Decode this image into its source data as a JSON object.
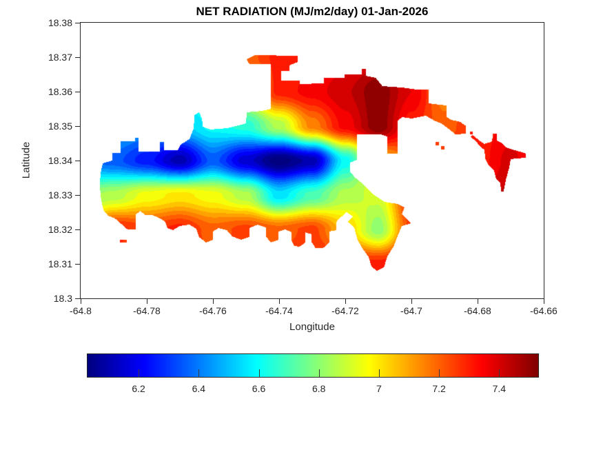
{
  "figure": {
    "title": "NET RADIATION (MJ/m2/day) 01-Jan-2026"
  },
  "chart_data": {
    "type": "heatmap",
    "title": "NET RADIATION (MJ/m2/day) 01-Jan-2026",
    "xlabel": "Longitude",
    "ylabel": "Latitude",
    "xlim": [
      -64.8,
      -64.66
    ],
    "ylim": [
      18.3,
      18.38
    ],
    "grid_on": false,
    "xticks": [
      -64.8,
      -64.78,
      -64.76,
      -64.74,
      -64.72,
      -64.7,
      -64.68,
      -64.66
    ],
    "xtick_labels": [
      "-64.8",
      "-64.78",
      "-64.76",
      "-64.74",
      "-64.72",
      "-64.7",
      "-64.68",
      "-64.66"
    ],
    "yticks": [
      18.38,
      18.37,
      18.36,
      18.35,
      18.34,
      18.33,
      18.32,
      18.31,
      18.3
    ],
    "ytick_labels": [
      "18.38",
      "18.37",
      "18.36",
      "18.35",
      "18.34",
      "18.33",
      "18.32",
      "18.31",
      "18.3"
    ],
    "colorbar": {
      "orientation": "horizontal",
      "colormap": "jet",
      "vmin": 6.03,
      "vmax": 7.53,
      "ticks": [
        6.2,
        6.4,
        6.6,
        6.8,
        7.0,
        7.2,
        7.4
      ],
      "tick_labels": [
        "6.2",
        "6.4",
        "6.6",
        "6.8",
        "7",
        "7.2",
        "7.4"
      ]
    },
    "level_step": 0.05,
    "grid": {
      "lon": [
        -64.8,
        -64.79,
        -64.78,
        -64.77,
        -64.76,
        -64.75,
        -64.74,
        -64.73,
        -64.72,
        -64.71,
        -64.7,
        -64.69,
        -64.68,
        -64.67,
        -64.66
      ],
      "lat": [
        18.38,
        18.37,
        18.36,
        18.35,
        18.34,
        18.33,
        18.32,
        18.31,
        18.3
      ],
      "values": [
        [
          6.5,
          6.5,
          6.55,
          6.6,
          6.7,
          6.9,
          7.1,
          7.25,
          7.35,
          7.4,
          7.35,
          7.25,
          7.2,
          7.2,
          7.2
        ],
        [
          6.5,
          6.5,
          6.55,
          6.6,
          6.75,
          7.2,
          7.3,
          7.3,
          7.35,
          7.4,
          7.35,
          7.25,
          7.2,
          7.2,
          7.2
        ],
        [
          6.5,
          6.5,
          6.55,
          6.6,
          6.7,
          7.0,
          7.3,
          7.35,
          7.42,
          7.52,
          7.38,
          7.15,
          7.1,
          7.15,
          7.1
        ],
        [
          6.45,
          6.5,
          6.45,
          6.5,
          6.6,
          6.65,
          6.85,
          7.15,
          7.35,
          7.52,
          7.3,
          7.2,
          7.3,
          7.35,
          7.2
        ],
        [
          6.4,
          6.35,
          6.25,
          6.1,
          6.35,
          6.15,
          6.0,
          6.1,
          6.6,
          7.05,
          7.2,
          7.3,
          7.3,
          7.4,
          7.25
        ],
        [
          6.8,
          6.85,
          6.95,
          7.0,
          6.95,
          6.85,
          6.55,
          6.7,
          6.85,
          6.9,
          7.3,
          7.3,
          7.35,
          7.45,
          7.3
        ],
        [
          7.0,
          7.3,
          7.25,
          7.3,
          7.2,
          7.25,
          7.2,
          7.25,
          7.05,
          6.8,
          7.25,
          7.3,
          7.35,
          7.4,
          7.3
        ],
        [
          7.2,
          7.25,
          7.25,
          7.3,
          7.25,
          7.25,
          7.25,
          7.3,
          7.3,
          7.3,
          7.35,
          7.35,
          7.35,
          7.35,
          7.35
        ],
        [
          7.3,
          7.3,
          7.3,
          7.3,
          7.3,
          7.3,
          7.3,
          7.3,
          7.3,
          7.3,
          7.35,
          7.35,
          7.35,
          7.35,
          7.35
        ]
      ]
    },
    "regions": [
      [
        [
          -64.7933,
          18.3392
        ],
        [
          -64.7904,
          18.34
        ],
        [
          -64.7904,
          18.3422
        ],
        [
          -64.7879,
          18.3422
        ],
        [
          -64.7879,
          18.3456
        ],
        [
          -64.7835,
          18.3456
        ],
        [
          -64.7835,
          18.3466
        ],
        [
          -64.7825,
          18.3466
        ],
        [
          -64.7825,
          18.3426
        ],
        [
          -64.776,
          18.3426
        ],
        [
          -64.776,
          18.3454
        ],
        [
          -64.7748,
          18.3454
        ],
        [
          -64.7748,
          18.343
        ],
        [
          -64.7706,
          18.343
        ],
        [
          -64.7698,
          18.3446
        ],
        [
          -64.7671,
          18.3462
        ],
        [
          -64.7658,
          18.3494
        ],
        [
          -64.7656,
          18.3532
        ],
        [
          -64.7642,
          18.354
        ],
        [
          -64.7633,
          18.3522
        ],
        [
          -64.7631,
          18.3498
        ],
        [
          -64.7608,
          18.349
        ],
        [
          -64.7556,
          18.3494
        ],
        [
          -64.7515,
          18.3504
        ],
        [
          -64.75,
          18.3508
        ],
        [
          -64.7498,
          18.354
        ],
        [
          -64.7452,
          18.3544
        ],
        [
          -64.7425,
          18.355
        ],
        [
          -64.7425,
          18.368
        ],
        [
          -64.749,
          18.368
        ],
        [
          -64.7498,
          18.3694
        ],
        [
          -64.7473,
          18.3706
        ],
        [
          -64.7344,
          18.3704
        ],
        [
          -64.7344,
          18.3686
        ],
        [
          -64.7369,
          18.3676
        ],
        [
          -64.7369,
          18.366
        ],
        [
          -64.7394,
          18.366
        ],
        [
          -64.7394,
          18.3632
        ],
        [
          -64.7338,
          18.3632
        ],
        [
          -64.7338,
          18.3622
        ],
        [
          -64.7265,
          18.3624
        ],
        [
          -64.7265,
          18.364
        ],
        [
          -64.7202,
          18.364
        ],
        [
          -64.7202,
          18.365
        ],
        [
          -64.715,
          18.365
        ],
        [
          -64.715,
          18.3666
        ],
        [
          -64.7138,
          18.3666
        ],
        [
          -64.7138,
          18.3646
        ],
        [
          -64.7108,
          18.364
        ],
        [
          -64.7088,
          18.3616
        ],
        [
          -64.7029,
          18.3612
        ],
        [
          -64.6983,
          18.3606
        ],
        [
          -64.6948,
          18.3606
        ],
        [
          -64.6948,
          18.3566
        ],
        [
          -64.6915,
          18.3562
        ],
        [
          -64.6894,
          18.356
        ],
        [
          -64.6894,
          18.3526
        ],
        [
          -64.6879,
          18.3518
        ],
        [
          -64.6852,
          18.3512
        ],
        [
          -64.6835,
          18.35
        ],
        [
          -64.6835,
          18.3478
        ],
        [
          -64.6867,
          18.3476
        ],
        [
          -64.689,
          18.3494
        ],
        [
          -64.691,
          18.3508
        ],
        [
          -64.6931,
          18.3516
        ],
        [
          -64.6956,
          18.353
        ],
        [
          -64.6979,
          18.3526
        ],
        [
          -64.7,
          18.3522
        ],
        [
          -64.7029,
          18.3526
        ],
        [
          -64.7042,
          18.3514
        ],
        [
          -64.7042,
          18.342
        ],
        [
          -64.7073,
          18.342
        ],
        [
          -64.7073,
          18.347
        ],
        [
          -64.7092,
          18.3476
        ],
        [
          -64.7165,
          18.3476
        ],
        [
          -64.7165,
          18.3402
        ],
        [
          -64.7185,
          18.3394
        ],
        [
          -64.7185,
          18.3366
        ],
        [
          -64.7169,
          18.335
        ],
        [
          -64.7144,
          18.333
        ],
        [
          -64.7113,
          18.33
        ],
        [
          -64.7081,
          18.328
        ],
        [
          -64.7042,
          18.3274
        ],
        [
          -64.7021,
          18.3264
        ],
        [
          -64.7029,
          18.3244
        ],
        [
          -64.7,
          18.3218
        ],
        [
          -64.7029,
          18.321
        ],
        [
          -64.7042,
          18.318
        ],
        [
          -64.7054,
          18.315
        ],
        [
          -64.7073,
          18.3122
        ],
        [
          -64.7083,
          18.309
        ],
        [
          -64.7104,
          18.308
        ],
        [
          -64.7121,
          18.3092
        ],
        [
          -64.7129,
          18.312
        ],
        [
          -64.7146,
          18.3142
        ],
        [
          -64.7163,
          18.317
        ],
        [
          -64.7173,
          18.3206
        ],
        [
          -64.7192,
          18.3222
        ],
        [
          -64.7177,
          18.3238
        ],
        [
          -64.7196,
          18.325
        ],
        [
          -64.7213,
          18.3236
        ],
        [
          -64.7227,
          18.3222
        ],
        [
          -64.7227,
          18.3198
        ],
        [
          -64.7248,
          18.3194
        ],
        [
          -64.7248,
          18.3162
        ],
        [
          -64.7267,
          18.3146
        ],
        [
          -64.729,
          18.3146
        ],
        [
          -64.7302,
          18.3164
        ],
        [
          -64.7302,
          18.3186
        ],
        [
          -64.7321,
          18.3192
        ],
        [
          -64.7321,
          18.3162
        ],
        [
          -64.7338,
          18.315
        ],
        [
          -64.7354,
          18.3152
        ],
        [
          -64.7363,
          18.3168
        ],
        [
          -64.7363,
          18.3192
        ],
        [
          -64.7381,
          18.32
        ],
        [
          -64.7402,
          18.3194
        ],
        [
          -64.7402,
          18.317
        ],
        [
          -64.7425,
          18.3162
        ],
        [
          -64.744,
          18.318
        ],
        [
          -64.744,
          18.3206
        ],
        [
          -64.7465,
          18.3214
        ],
        [
          -64.749,
          18.3204
        ],
        [
          -64.749,
          18.3178
        ],
        [
          -64.7515,
          18.317
        ],
        [
          -64.7542,
          18.318
        ],
        [
          -64.7558,
          18.3198
        ],
        [
          -64.7583,
          18.3204
        ],
        [
          -64.76,
          18.3194
        ],
        [
          -64.76,
          18.317
        ],
        [
          -64.7621,
          18.3162
        ],
        [
          -64.7642,
          18.3178
        ],
        [
          -64.765,
          18.3202
        ],
        [
          -64.7671,
          18.3214
        ],
        [
          -64.77,
          18.321
        ],
        [
          -64.7721,
          18.3198
        ],
        [
          -64.7738,
          18.3204
        ],
        [
          -64.7744,
          18.3222
        ],
        [
          -64.776,
          18.3232
        ],
        [
          -64.7783,
          18.3242
        ],
        [
          -64.7806,
          18.3242
        ],
        [
          -64.7819,
          18.3254
        ],
        [
          -64.7833,
          18.3244
        ],
        [
          -64.7833,
          18.32
        ],
        [
          -64.7858,
          18.32
        ],
        [
          -64.7877,
          18.3216
        ],
        [
          -64.7896,
          18.3232
        ],
        [
          -64.7917,
          18.324
        ],
        [
          -64.7931,
          18.3256
        ],
        [
          -64.7938,
          18.3286
        ],
        [
          -64.7942,
          18.3326
        ],
        [
          -64.794,
          18.3362
        ]
      ],
      [
        [
          -64.6815,
          18.3474
        ],
        [
          -64.6792,
          18.3456
        ],
        [
          -64.6779,
          18.3448
        ],
        [
          -64.6769,
          18.3452
        ],
        [
          -64.6758,
          18.3454
        ],
        [
          -64.6754,
          18.3468
        ],
        [
          -64.6754,
          18.3478
        ],
        [
          -64.6742,
          18.3478
        ],
        [
          -64.6742,
          18.3458
        ],
        [
          -64.6725,
          18.345
        ],
        [
          -64.6713,
          18.3438
        ],
        [
          -64.6688,
          18.343
        ],
        [
          -64.6665,
          18.3424
        ],
        [
          -64.6654,
          18.342
        ],
        [
          -64.6654,
          18.3408
        ],
        [
          -64.6683,
          18.3406
        ],
        [
          -64.67,
          18.3404
        ],
        [
          -64.6704,
          18.338
        ],
        [
          -64.671,
          18.336
        ],
        [
          -64.6715,
          18.3342
        ],
        [
          -64.6719,
          18.3322
        ],
        [
          -64.6721,
          18.331
        ],
        [
          -64.6729,
          18.331
        ],
        [
          -64.6731,
          18.3334
        ],
        [
          -64.6744,
          18.3348
        ],
        [
          -64.675,
          18.337
        ],
        [
          -64.6758,
          18.3378
        ],
        [
          -64.6769,
          18.339
        ],
        [
          -64.6777,
          18.3406
        ],
        [
          -64.6779,
          18.343
        ],
        [
          -64.6792,
          18.3442
        ],
        [
          -64.681,
          18.346
        ],
        [
          -64.6821,
          18.3468
        ]
      ],
      [
        [
          -64.6823,
          18.3484
        ],
        [
          -64.6815,
          18.3484
        ],
        [
          -64.6815,
          18.3476
        ],
        [
          -64.6823,
          18.3476
        ]
      ],
      [
        [
          -64.6927,
          18.3454
        ],
        [
          -64.6917,
          18.3454
        ],
        [
          -64.6917,
          18.3444
        ],
        [
          -64.6927,
          18.3444
        ]
      ],
      [
        [
          -64.691,
          18.3442
        ],
        [
          -64.69,
          18.3442
        ],
        [
          -64.69,
          18.3432
        ],
        [
          -64.691,
          18.3432
        ]
      ],
      [
        [
          -64.7881,
          18.317
        ],
        [
          -64.786,
          18.317
        ],
        [
          -64.786,
          18.3162
        ],
        [
          -64.7881,
          18.3162
        ]
      ]
    ]
  }
}
